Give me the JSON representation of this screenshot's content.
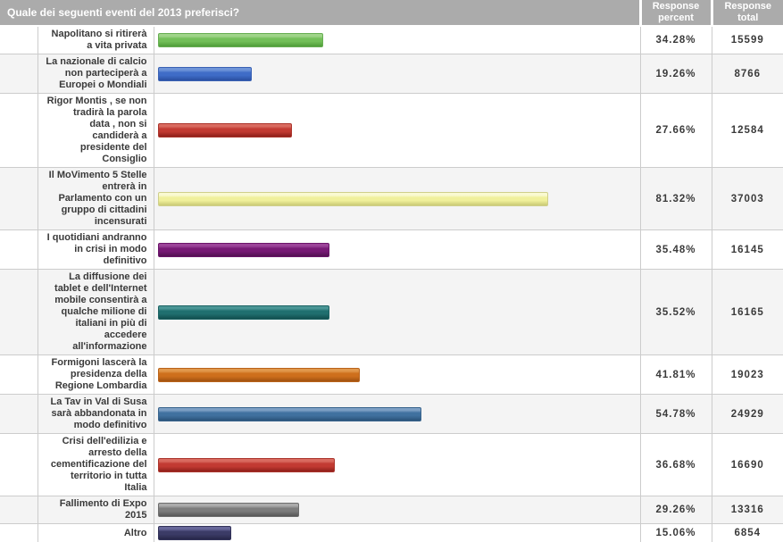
{
  "header": {
    "question": "Quale dei seguenti eventi del 2013 preferisci?",
    "col_percent": "Response percent",
    "col_total": "Response total"
  },
  "rows": [
    {
      "label": "Napolitano si ritirerà\na vita privata",
      "percent": "34.28%",
      "total": "15599",
      "value": 34.28,
      "color": {
        "light": "#9fd489",
        "main": "#72bf58",
        "dark": "#4e9c38",
        "border": "#67ae53"
      }
    },
    {
      "label": "La nazionale di calcio\nnon parteciperà a\nEuropei o Mondiali",
      "percent": "19.26%",
      "total": "8766",
      "value": 19.26,
      "color": {
        "light": "#6e94d8",
        "main": "#3f6cc7",
        "dark": "#2a4fa0",
        "border": "#3a62b4"
      }
    },
    {
      "label": "Rigor Montis , se non\ntradirà la parola\ndata , non si\ncandiderà a\npresidente del\nConsiglio",
      "percent": "27.66%",
      "total": "12584",
      "value": 27.66,
      "color": {
        "light": "#d96b60",
        "main": "#c23a32",
        "dark": "#8e1f1a",
        "border": "#ab352c"
      }
    },
    {
      "label": "Il MoVimento 5 Stelle\nentrerà in\nParlamento con un\ngruppo di cittadini\nincensurati",
      "percent": "81.32%",
      "total": "37003",
      "value": 81.32,
      "color": {
        "light": "#fafad2",
        "main": "#f0f09b",
        "dark": "#caca75",
        "border": "#cfcf8b"
      }
    },
    {
      "label": "I quotidiani andranno\nin crisi in modo\ndefinitivo",
      "percent": "35.48%",
      "total": "16145",
      "value": 35.48,
      "color": {
        "light": "#9c4499",
        "main": "#771975",
        "dark": "#531052",
        "border": "#6b156a"
      }
    },
    {
      "label": "La diffusione dei\ntablet e dell'Internet\nmobile consentirà a\nqualche milione di\nitaliani in più di\naccedere\nall'informazione",
      "percent": "35.52%",
      "total": "16165",
      "value": 35.52,
      "color": {
        "light": "#4a9595",
        "main": "#206f6f",
        "dark": "#124e4e",
        "border": "#1d6363"
      }
    },
    {
      "label": "Formigoni lascerà la\npresidenza della\nRegione Lombardia",
      "percent": "41.81%",
      "total": "19023",
      "value": 41.81,
      "color": {
        "light": "#e1984c",
        "main": "#ce6f1c",
        "dark": "#a05110",
        "border": "#b9631a"
      }
    },
    {
      "label": "La Tav in Val di Susa\nsarà abbandonata in\nmodo definitivo",
      "percent": "54.78%",
      "total": "24929",
      "value": 54.78,
      "color": {
        "light": "#7c9fc4",
        "main": "#40719f",
        "dark": "#2a5378",
        "border": "#39648d"
      }
    },
    {
      "label": "Crisi dell'edilizia e\narresto della\ncementificazione del\nterritorio in tutta\nItalia",
      "percent": "36.68%",
      "total": "16690",
      "value": 36.68,
      "color": {
        "light": "#d96b60",
        "main": "#c23a32",
        "dark": "#8e1f1a",
        "border": "#ab352c"
      }
    },
    {
      "label": "Fallimento di Expo\n2015",
      "percent": "29.26%",
      "total": "13316",
      "value": 29.26,
      "color": {
        "light": "#ababab",
        "main": "#7c7c7c",
        "dark": "#575757",
        "border": "#6e6e6e"
      }
    },
    {
      "label": "Altro",
      "percent": "15.06%",
      "total": "6854",
      "value": 15.06,
      "color": {
        "light": "#68689a",
        "main": "#3b3b66",
        "dark": "#272749",
        "border": "#333359"
      }
    }
  ],
  "chart_data": {
    "type": "bar",
    "orientation": "horizontal",
    "title": "Quale dei seguenti eventi del 2013 preferisci?",
    "categories": [
      "Napolitano si ritirerà a vita privata",
      "La nazionale di calcio non parteciperà a Europei o Mondiali",
      "Rigor Montis, se non tradirà la parola data, non si candiderà a presidente del Consiglio",
      "Il MoVimento 5 Stelle entrerà in Parlamento con un gruppo di cittadini incensurati",
      "I quotidiani andranno in crisi in modo definitivo",
      "La diffusione dei tablet e dell'Internet mobile consentirà a qualche milione di italiani in più di accedere all'informazione",
      "Formigoni lascerà la presidenza della Regione Lombardia",
      "La Tav in Val di Susa sarà abbandonata in modo definitivo",
      "Crisi dell'edilizia e arresto della cementificazione del territorio in tutta Italia",
      "Fallimento di Expo 2015",
      "Altro"
    ],
    "series": [
      {
        "name": "Response percent",
        "values": [
          34.28,
          19.26,
          27.66,
          81.32,
          35.48,
          35.52,
          41.81,
          54.78,
          36.68,
          29.26,
          15.06
        ]
      },
      {
        "name": "Response total",
        "values": [
          15599,
          8766,
          12584,
          37003,
          16145,
          16165,
          19023,
          24929,
          16690,
          13316,
          6854
        ]
      }
    ],
    "xlim": [
      0,
      100
    ],
    "grid": false,
    "legend": false,
    "bar_colors": [
      "#72bf58",
      "#3f6cc7",
      "#c23a32",
      "#f0f09b",
      "#771975",
      "#206f6f",
      "#ce6f1c",
      "#40719f",
      "#c23a32",
      "#7c7c7c",
      "#3b3b66"
    ]
  }
}
